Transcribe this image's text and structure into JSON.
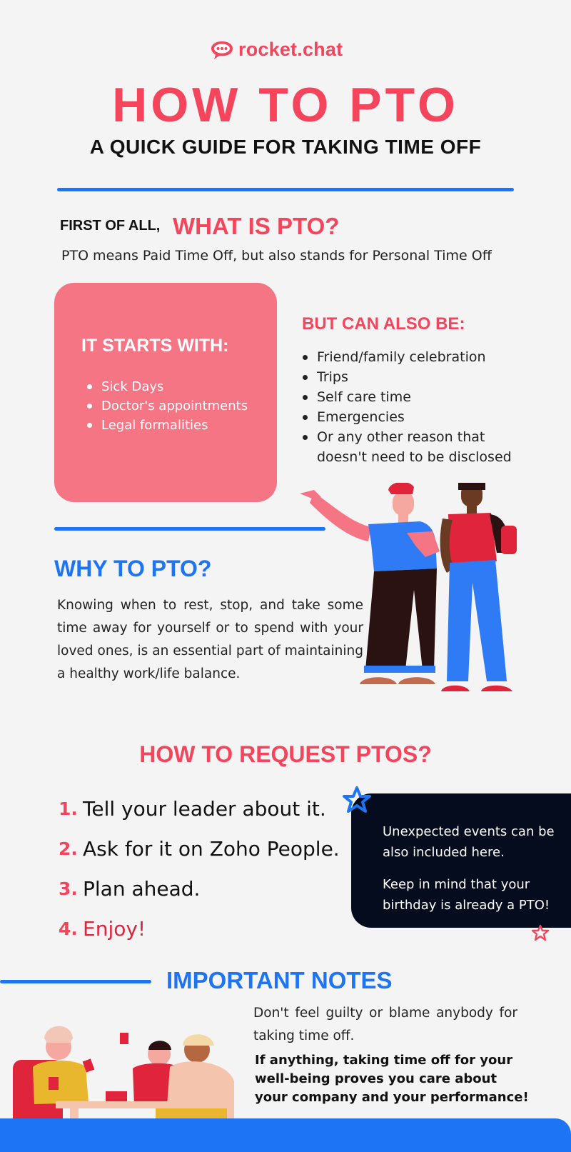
{
  "header": {
    "logo_text": "rocket.chat",
    "title": "HOW TO PTO",
    "subtitle": "A QUICK GUIDE FOR TAKING TIME OFF"
  },
  "what": {
    "label": "FIRST OF ALL,",
    "question": "WHAT IS PTO?",
    "definition": "PTO means Paid Time Off, but also stands for Personal Time Off"
  },
  "starts_with": {
    "title": "IT STARTS WITH:",
    "items": [
      "Sick Days",
      "Doctor's appointments",
      "Legal formalities"
    ]
  },
  "also_be": {
    "title": "BUT CAN ALSO BE:",
    "items": [
      "Friend/family celebration",
      "Trips",
      "Self care time",
      "Emergencies",
      "Or any other reason that doesn't need to be disclosed"
    ]
  },
  "why": {
    "title": "WHY TO PTO?",
    "text": "Knowing when to rest, stop, and take some time away for yourself or to spend with your loved ones, is an essential part of maintaining a healthy work/life balance."
  },
  "how": {
    "title": "HOW TO REQUEST PTOS?",
    "steps": [
      {
        "num": "1.",
        "text": "Tell your leader about it."
      },
      {
        "num": "2.",
        "text": "Ask for it on Zoho People."
      },
      {
        "num": "3.",
        "text": "Plan ahead."
      },
      {
        "num": "4.",
        "text": "Enjoy!"
      }
    ],
    "note_1": "Unexpected events can be also included here.",
    "note_2": "Keep in mind that your birthday is already a PTO!"
  },
  "notes": {
    "title": "IMPORTANT NOTES",
    "p1": "Don't feel guilty or blame anybody for taking time off.",
    "p2": "If anything, taking time off for your well-being proves you care about your company and your performance!"
  },
  "colors": {
    "brand_red": "#f5455c",
    "brand_blue": "#1d74f5",
    "card_pink": "#f67584",
    "dark_navy": "#050c1e"
  }
}
